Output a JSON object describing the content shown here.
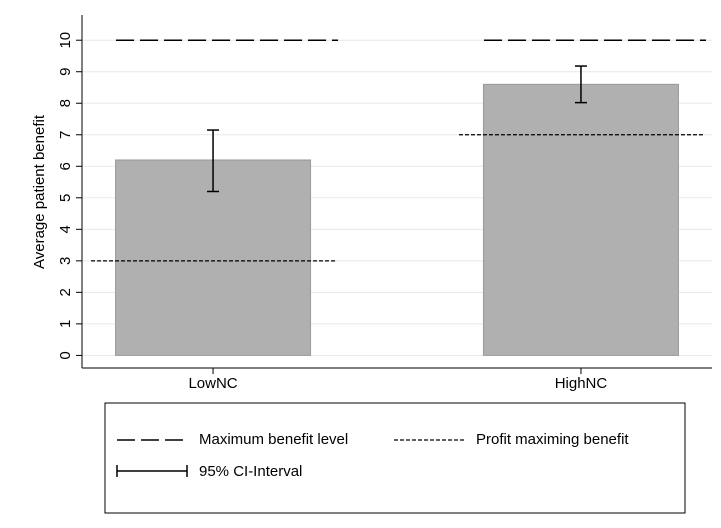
{
  "chart_data": {
    "type": "bar",
    "ylabel": "Average patient benefit",
    "categories": [
      "LowNC",
      "HighNC"
    ],
    "values": [
      6.2,
      8.6
    ],
    "color": "#b0b0b0",
    "ci_low": [
      5.2,
      8.02
    ],
    "ci_high": [
      7.15,
      9.18
    ],
    "ci_name": "95% CI-Interval",
    "max_benefit": {
      "name": "Maximum benefit level",
      "values": [
        10,
        10
      ]
    },
    "profit_max": {
      "name": "Profit maximing benefit",
      "values": [
        3,
        7
      ]
    },
    "ylim": [
      -0.4,
      10.8
    ],
    "yticks": [
      0,
      1,
      2,
      3,
      4,
      5,
      6,
      7,
      8,
      9,
      10
    ],
    "grid": true
  }
}
